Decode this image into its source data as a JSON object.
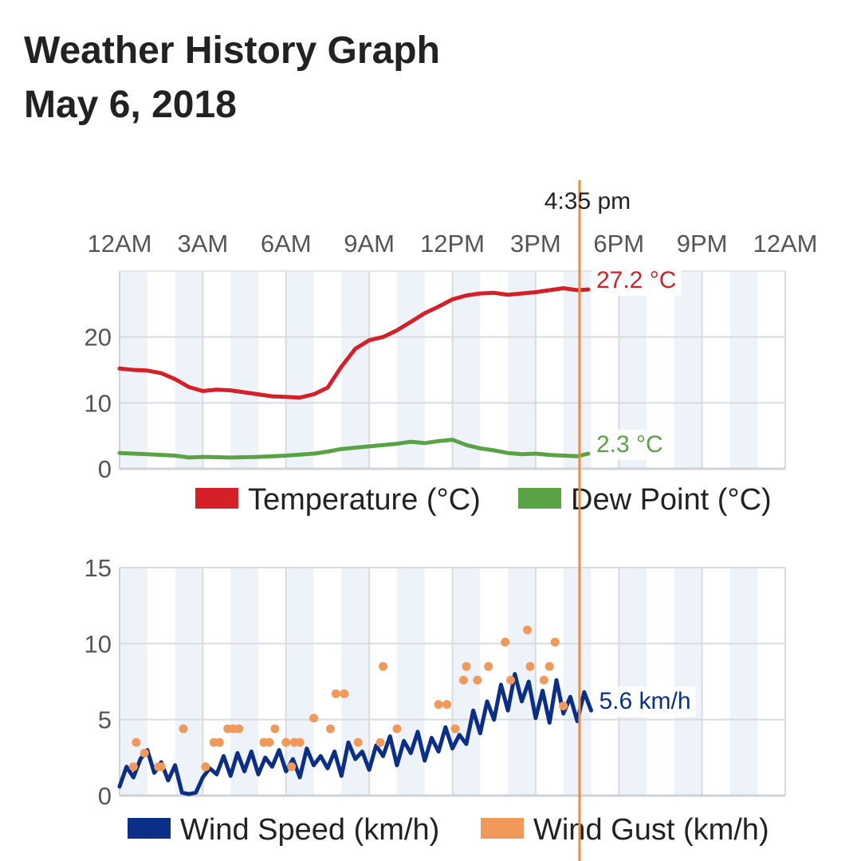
{
  "header": {
    "title": "Weather History Graph",
    "date": "May 6, 2018"
  },
  "chart_data": [
    {
      "type": "line",
      "x_unit": "hours since 12AM",
      "xlim": [
        0,
        24
      ],
      "x_tick_labels": [
        "12AM",
        "3AM",
        "6AM",
        "9AM",
        "12PM",
        "3PM",
        "6PM",
        "9PM",
        "12AM"
      ],
      "ylim": [
        0,
        30
      ],
      "y_ticks": [
        0,
        10,
        20
      ],
      "grid": true,
      "legend_position": "bottom-right",
      "current_time_label": "4:35 pm",
      "series": [
        {
          "name": "Temperature (°C)",
          "color": "#d42026",
          "end_label": "27.2 °C",
          "x": [
            0,
            0.5,
            1,
            1.5,
            2,
            2.5,
            3,
            3.5,
            4,
            4.5,
            5,
            5.5,
            6,
            6.5,
            7,
            7.5,
            8,
            8.5,
            9,
            9.5,
            10,
            10.5,
            11,
            11.5,
            12,
            12.5,
            13,
            13.5,
            14,
            14.5,
            15,
            15.5,
            16,
            16.5,
            16.9
          ],
          "values": [
            15.2,
            15.0,
            14.9,
            14.5,
            13.6,
            12.4,
            11.8,
            12.0,
            11.9,
            11.6,
            11.3,
            11.0,
            10.9,
            10.8,
            11.3,
            12.3,
            15.5,
            18.2,
            19.5,
            20.0,
            21.0,
            22.3,
            23.6,
            24.6,
            25.7,
            26.3,
            26.6,
            26.7,
            26.4,
            26.6,
            26.8,
            27.1,
            27.4,
            27.1,
            27.2
          ]
        },
        {
          "name": "Dew Point (°C)",
          "color": "#5aa344",
          "end_label": "2.3 °C",
          "x": [
            0,
            1,
            2,
            2.5,
            3,
            4,
            5,
            6,
            7,
            7.5,
            8,
            9,
            10,
            10.5,
            11,
            11.5,
            12,
            12.5,
            13,
            13.5,
            14,
            14.5,
            15,
            15.5,
            16,
            16.5,
            16.9
          ],
          "values": [
            2.4,
            2.2,
            2.0,
            1.7,
            1.8,
            1.7,
            1.8,
            2.0,
            2.3,
            2.6,
            3.0,
            3.4,
            3.8,
            4.1,
            3.9,
            4.2,
            4.4,
            3.6,
            3.1,
            2.8,
            2.4,
            2.2,
            2.3,
            2.1,
            2.0,
            1.9,
            2.3
          ]
        }
      ]
    },
    {
      "type": "line",
      "x_unit": "hours since 12AM",
      "xlim": [
        0,
        24
      ],
      "ylim": [
        0,
        15
      ],
      "y_ticks": [
        0,
        5,
        10,
        15
      ],
      "grid": true,
      "legend_position": "bottom-right",
      "series": [
        {
          "name": "Wind Speed (km/h)",
          "color": "#0b2f87",
          "end_label": "5.6 km/h",
          "x": [
            0,
            0.25,
            0.5,
            0.75,
            1,
            1.25,
            1.5,
            1.75,
            2,
            2.25,
            2.5,
            2.75,
            3,
            3.25,
            3.5,
            3.75,
            4,
            4.25,
            4.5,
            4.75,
            5,
            5.25,
            5.5,
            5.75,
            6,
            6.25,
            6.5,
            6.75,
            7,
            7.25,
            7.5,
            7.75,
            8,
            8.25,
            8.5,
            8.75,
            9,
            9.25,
            9.5,
            9.75,
            10,
            10.25,
            10.5,
            10.75,
            11,
            11.25,
            11.5,
            11.75,
            12,
            12.25,
            12.5,
            12.75,
            13,
            13.25,
            13.5,
            13.75,
            14,
            14.25,
            14.5,
            14.75,
            15,
            15.25,
            15.5,
            15.75,
            16,
            16.25,
            16.5,
            16.75,
            17
          ],
          "values": [
            0.6,
            1.9,
            1.2,
            2.4,
            3.0,
            1.5,
            2.2,
            1.0,
            2.0,
            0.2,
            0.1,
            0.2,
            1.2,
            1.8,
            1.4,
            2.6,
            1.3,
            2.8,
            1.6,
            2.9,
            1.4,
            2.5,
            1.9,
            3.0,
            1.6,
            2.4,
            1.2,
            3.1,
            2.0,
            2.6,
            1.8,
            2.9,
            1.3,
            3.5,
            2.4,
            2.9,
            1.7,
            3.3,
            2.6,
            3.9,
            2.0,
            3.6,
            2.8,
            4.2,
            2.3,
            3.8,
            2.9,
            4.5,
            3.1,
            4.0,
            3.4,
            5.6,
            4.1,
            6.2,
            5.0,
            7.3,
            5.6,
            8.0,
            6.2,
            7.5,
            5.1,
            6.9,
            4.8,
            7.6,
            5.4,
            6.5,
            4.9,
            6.8,
            5.6
          ]
        },
        {
          "name": "Wind Gust (km/h)",
          "color": "#f0995a",
          "x": [
            0.5,
            0.6,
            0.9,
            1.4,
            1.5,
            2.3,
            3.1,
            3.4,
            3.6,
            3.9,
            4.1,
            4.3,
            5.2,
            5.4,
            5.6,
            6.0,
            6.2,
            6.3,
            6.5,
            7.0,
            7.6,
            7.8,
            8.1,
            8.6,
            9.4,
            9.5,
            10.0,
            11.5,
            11.8,
            12.1,
            12.4,
            12.5,
            12.9,
            13.3,
            13.9,
            14.1,
            14.7,
            14.8,
            15.3,
            15.5,
            15.7,
            16.0
          ],
          "values": [
            1.9,
            3.5,
            2.8,
            1.9,
            1.9,
            4.4,
            1.9,
            3.5,
            3.5,
            4.4,
            4.4,
            4.4,
            3.5,
            3.5,
            4.4,
            3.5,
            1.9,
            3.5,
            3.5,
            5.1,
            4.4,
            6.7,
            6.7,
            3.5,
            3.5,
            8.5,
            4.4,
            6.0,
            6.0,
            4.4,
            7.6,
            8.5,
            7.6,
            8.5,
            10.1,
            7.6,
            10.9,
            8.5,
            7.6,
            8.5,
            10.1,
            5.9
          ]
        }
      ]
    }
  ]
}
